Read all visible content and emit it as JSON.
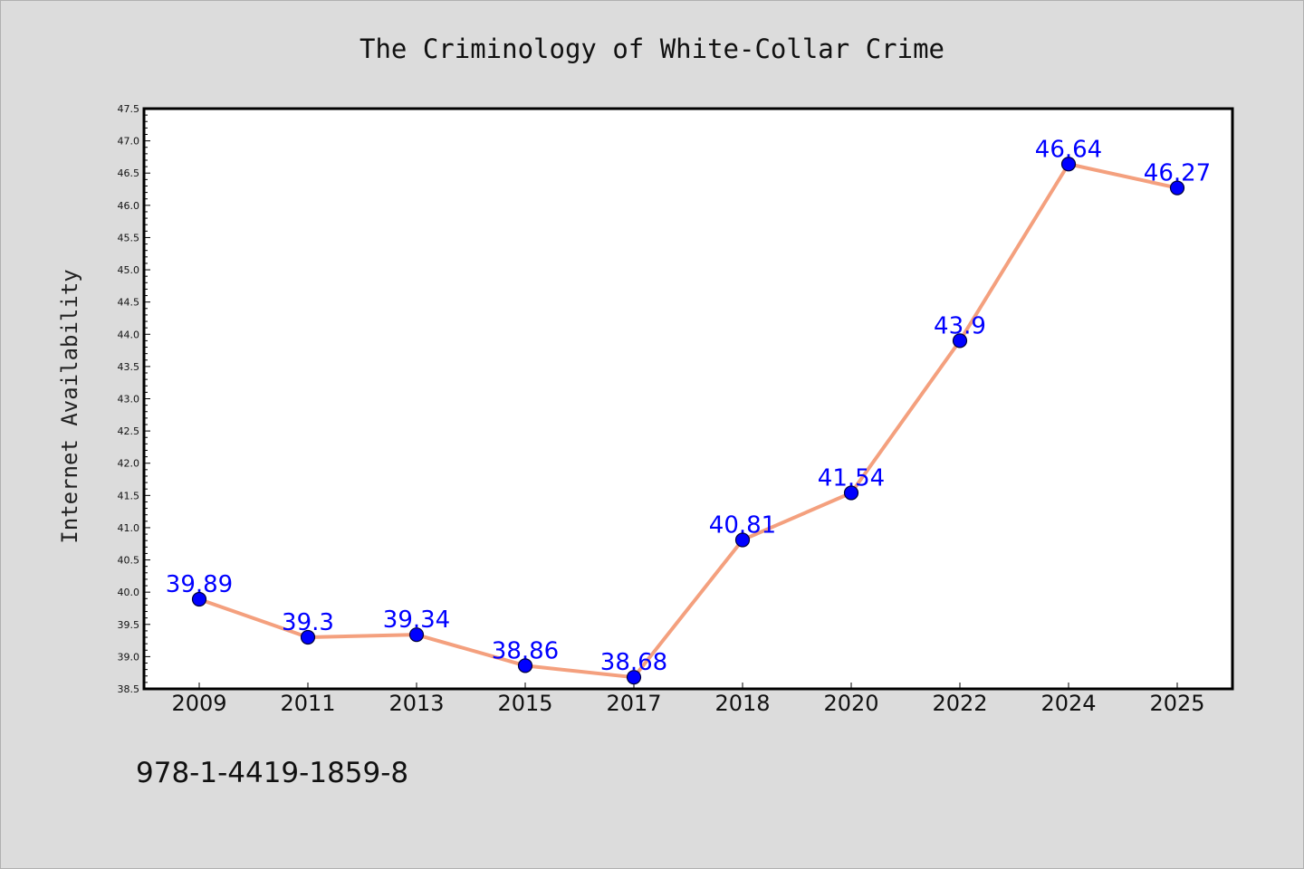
{
  "chart_data": {
    "type": "line",
    "title": "The Criminology of White-Collar Crime",
    "xlabel": "",
    "ylabel": "Internet Availability",
    "categories": [
      "2009",
      "2011",
      "2013",
      "2015",
      "2017",
      "2018",
      "2020",
      "2022",
      "2024",
      "2025"
    ],
    "series": [
      {
        "values": [
          39.89,
          39.3,
          39.34,
          38.86,
          38.68,
          40.81,
          41.54,
          43.9,
          46.64,
          46.27
        ]
      }
    ],
    "data_labels": [
      "39.89",
      "39.3",
      "39.34",
      "38.86",
      "38.68",
      "40.81",
      "41.54",
      "43.9",
      "46.64",
      "46.27"
    ],
    "ylim": [
      38.5,
      47.5
    ],
    "ytick_step": 0.5,
    "grid": false,
    "legend": "none",
    "colors": {
      "line": "#f4a07e",
      "marker": "#0000ff",
      "marker_edge": "#00003a",
      "data_label": "#0000ff",
      "background": "#dcdcdc",
      "plot_background": "#ffffff"
    }
  },
  "annotation": {
    "isbn": "978-1-4419-1859-8"
  }
}
